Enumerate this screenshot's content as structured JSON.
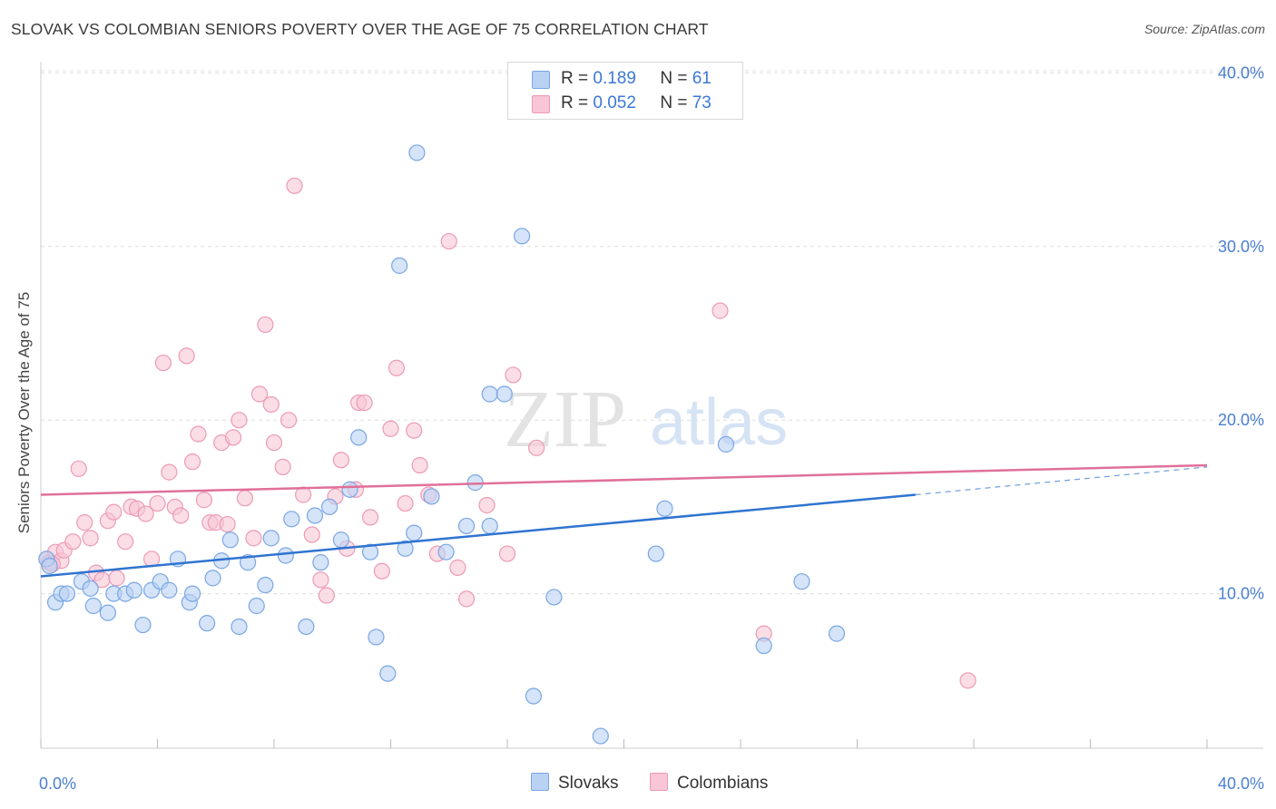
{
  "title": "SLOVAK VS COLOMBIAN SENIORS POVERTY OVER THE AGE OF 75 CORRELATION CHART",
  "source": "Source: ZipAtlas.com",
  "watermark": {
    "zip": "ZIP",
    "atlas": "atlas"
  },
  "legend": {
    "rows": [
      {
        "r_label": "R =",
        "r_value": "0.189",
        "n_label": "N =",
        "n_value": "61"
      },
      {
        "r_label": "R =",
        "r_value": "0.052",
        "n_label": "N =",
        "n_value": "73"
      }
    ]
  },
  "bottom_legend": {
    "slovaks": "Slovaks",
    "colombians": "Colombians"
  },
  "colors": {
    "slovak_fill": "#b9d2f3",
    "slovak_stroke": "#7aa6e4",
    "slovak_line": "#2f74d0",
    "colombian_fill": "#f8c6d6",
    "colombian_stroke": "#ec9ab6",
    "colombian_line": "#e0709a",
    "tick_text": "#4a7fd0",
    "grid": "#dddddd"
  },
  "chart_data": {
    "type": "scatter",
    "title": "SLOVAK VS COLOMBIAN SENIORS POVERTY OVER THE AGE OF 75 CORRELATION CHART",
    "xlabel": "",
    "ylabel": "Seniors Poverty Over the Age of 75",
    "xlim": [
      0,
      40
    ],
    "ylim": [
      1,
      41
    ],
    "x_tick_labels": [
      "0.0%",
      "40.0%"
    ],
    "y_ticks": [
      10,
      20,
      30,
      40
    ],
    "y_tick_labels": [
      "10.0%",
      "20.0%",
      "30.0%",
      "40.0%"
    ],
    "grid": true,
    "legend_position": "top-center",
    "series": [
      {
        "name": "Slovaks",
        "r": 0.189,
        "n": 61,
        "trend": {
          "x0": 0,
          "y0": 11.0,
          "x1": 30.0,
          "y1": 15.7,
          "dashed_to_x": 40,
          "dashed_to_y": 17.3
        },
        "points": [
          [
            0.2,
            12.0
          ],
          [
            0.3,
            11.6
          ],
          [
            0.5,
            9.5
          ],
          [
            0.7,
            10.0
          ],
          [
            0.9,
            10.0
          ],
          [
            1.4,
            10.7
          ],
          [
            1.7,
            10.3
          ],
          [
            1.8,
            9.3
          ],
          [
            2.3,
            8.9
          ],
          [
            2.5,
            10.0
          ],
          [
            2.9,
            10.0
          ],
          [
            3.2,
            10.2
          ],
          [
            3.5,
            8.2
          ],
          [
            3.8,
            10.2
          ],
          [
            4.1,
            10.7
          ],
          [
            4.4,
            10.2
          ],
          [
            4.7,
            12.0
          ],
          [
            5.1,
            9.5
          ],
          [
            5.2,
            10.0
          ],
          [
            5.7,
            8.3
          ],
          [
            5.9,
            10.9
          ],
          [
            6.2,
            11.9
          ],
          [
            6.5,
            13.1
          ],
          [
            6.8,
            8.1
          ],
          [
            7.1,
            11.8
          ],
          [
            7.4,
            9.3
          ],
          [
            7.7,
            10.5
          ],
          [
            7.9,
            13.2
          ],
          [
            8.4,
            12.2
          ],
          [
            8.6,
            14.3
          ],
          [
            9.1,
            8.1
          ],
          [
            9.4,
            14.5
          ],
          [
            9.6,
            11.8
          ],
          [
            9.9,
            15.0
          ],
          [
            10.3,
            13.1
          ],
          [
            10.6,
            16.0
          ],
          [
            10.9,
            19.0
          ],
          [
            11.3,
            12.4
          ],
          [
            11.5,
            7.5
          ],
          [
            11.9,
            5.4
          ],
          [
            12.3,
            28.9
          ],
          [
            12.5,
            12.6
          ],
          [
            12.8,
            13.5
          ],
          [
            12.9,
            35.4
          ],
          [
            13.4,
            15.6
          ],
          [
            13.9,
            12.4
          ],
          [
            14.6,
            13.9
          ],
          [
            14.9,
            16.4
          ],
          [
            15.4,
            21.5
          ],
          [
            15.4,
            13.9
          ],
          [
            15.9,
            21.5
          ],
          [
            16.5,
            30.6
          ],
          [
            16.9,
            4.1
          ],
          [
            17.6,
            9.8
          ],
          [
            19.2,
            1.8
          ],
          [
            21.1,
            12.3
          ],
          [
            21.4,
            14.9
          ],
          [
            23.5,
            18.6
          ],
          [
            24.8,
            7.0
          ],
          [
            26.1,
            10.7
          ],
          [
            27.3,
            7.7
          ]
        ]
      },
      {
        "name": "Colombians",
        "r": 0.052,
        "n": 73,
        "trend": {
          "x0": 0,
          "y0": 15.7,
          "x1": 40,
          "y1": 17.4
        },
        "points": [
          [
            0.2,
            12.0
          ],
          [
            0.3,
            11.8
          ],
          [
            0.5,
            12.4
          ],
          [
            0.7,
            11.9
          ],
          [
            0.8,
            12.5
          ],
          [
            1.1,
            13.0
          ],
          [
            1.3,
            17.2
          ],
          [
            1.5,
            14.1
          ],
          [
            1.7,
            13.2
          ],
          [
            1.9,
            11.2
          ],
          [
            2.1,
            10.8
          ],
          [
            2.3,
            14.2
          ],
          [
            2.5,
            14.7
          ],
          [
            2.6,
            10.9
          ],
          [
            2.9,
            13.0
          ],
          [
            3.1,
            15.0
          ],
          [
            3.3,
            14.9
          ],
          [
            3.6,
            14.6
          ],
          [
            3.8,
            12.0
          ],
          [
            4.0,
            15.2
          ],
          [
            4.2,
            23.3
          ],
          [
            4.4,
            17.0
          ],
          [
            4.6,
            15.0
          ],
          [
            4.8,
            14.5
          ],
          [
            5.0,
            23.7
          ],
          [
            5.2,
            17.6
          ],
          [
            5.4,
            19.2
          ],
          [
            5.6,
            15.4
          ],
          [
            5.8,
            14.1
          ],
          [
            6.0,
            14.1
          ],
          [
            6.2,
            18.7
          ],
          [
            6.4,
            14.0
          ],
          [
            6.6,
            19.0
          ],
          [
            6.8,
            20.0
          ],
          [
            7.0,
            15.5
          ],
          [
            7.3,
            13.2
          ],
          [
            7.5,
            21.5
          ],
          [
            7.7,
            25.5
          ],
          [
            7.9,
            20.9
          ],
          [
            8.0,
            18.7
          ],
          [
            8.3,
            17.3
          ],
          [
            8.5,
            20.0
          ],
          [
            8.7,
            33.5
          ],
          [
            9.0,
            15.7
          ],
          [
            9.3,
            13.4
          ],
          [
            9.6,
            10.8
          ],
          [
            9.8,
            9.9
          ],
          [
            10.1,
            15.6
          ],
          [
            10.3,
            17.7
          ],
          [
            10.5,
            12.6
          ],
          [
            10.8,
            16.0
          ],
          [
            10.9,
            21.0
          ],
          [
            11.1,
            21.0
          ],
          [
            11.3,
            14.4
          ],
          [
            11.7,
            11.3
          ],
          [
            12.0,
            19.5
          ],
          [
            12.2,
            23.0
          ],
          [
            12.5,
            15.2
          ],
          [
            12.8,
            19.4
          ],
          [
            13.0,
            17.4
          ],
          [
            13.3,
            15.7
          ],
          [
            13.6,
            12.3
          ],
          [
            14.0,
            30.3
          ],
          [
            14.3,
            11.5
          ],
          [
            14.6,
            9.7
          ],
          [
            15.3,
            15.1
          ],
          [
            16.0,
            12.3
          ],
          [
            16.2,
            22.6
          ],
          [
            17.0,
            18.4
          ],
          [
            23.3,
            26.3
          ],
          [
            24.8,
            7.7
          ],
          [
            31.8,
            5.0
          ],
          [
            0.4,
            11.7
          ]
        ]
      }
    ]
  }
}
